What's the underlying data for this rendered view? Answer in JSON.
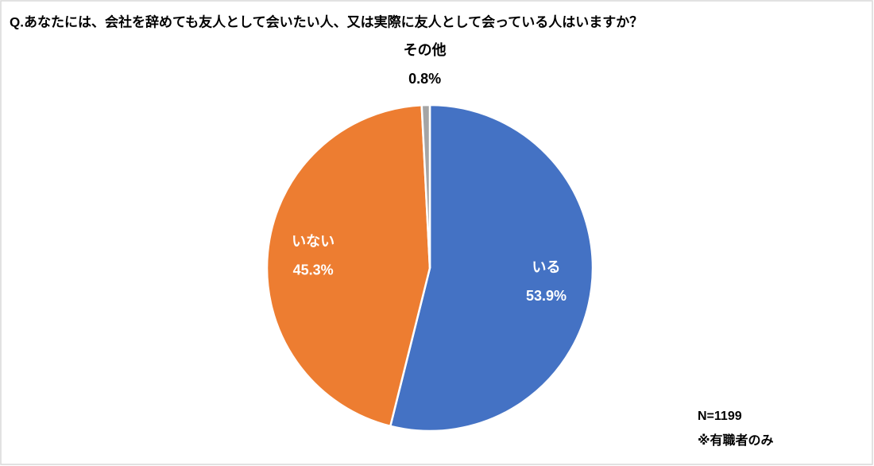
{
  "chart_data": {
    "type": "pie",
    "title": "Q.あなたには、会社を辞めても友人として会いたい人、又は実際に友人として会っている人はいますか？",
    "categories": [
      "いる",
      "いない",
      "その他"
    ],
    "values": [
      53.9,
      45.3,
      0.8
    ],
    "value_labels": [
      "53.9%",
      "45.3%",
      "0.8%"
    ],
    "colors": [
      "#4472c4",
      "#ed7d31",
      "#a5a5a5"
    ],
    "notes": [
      "N=1199",
      "※有職者のみ"
    ]
  }
}
